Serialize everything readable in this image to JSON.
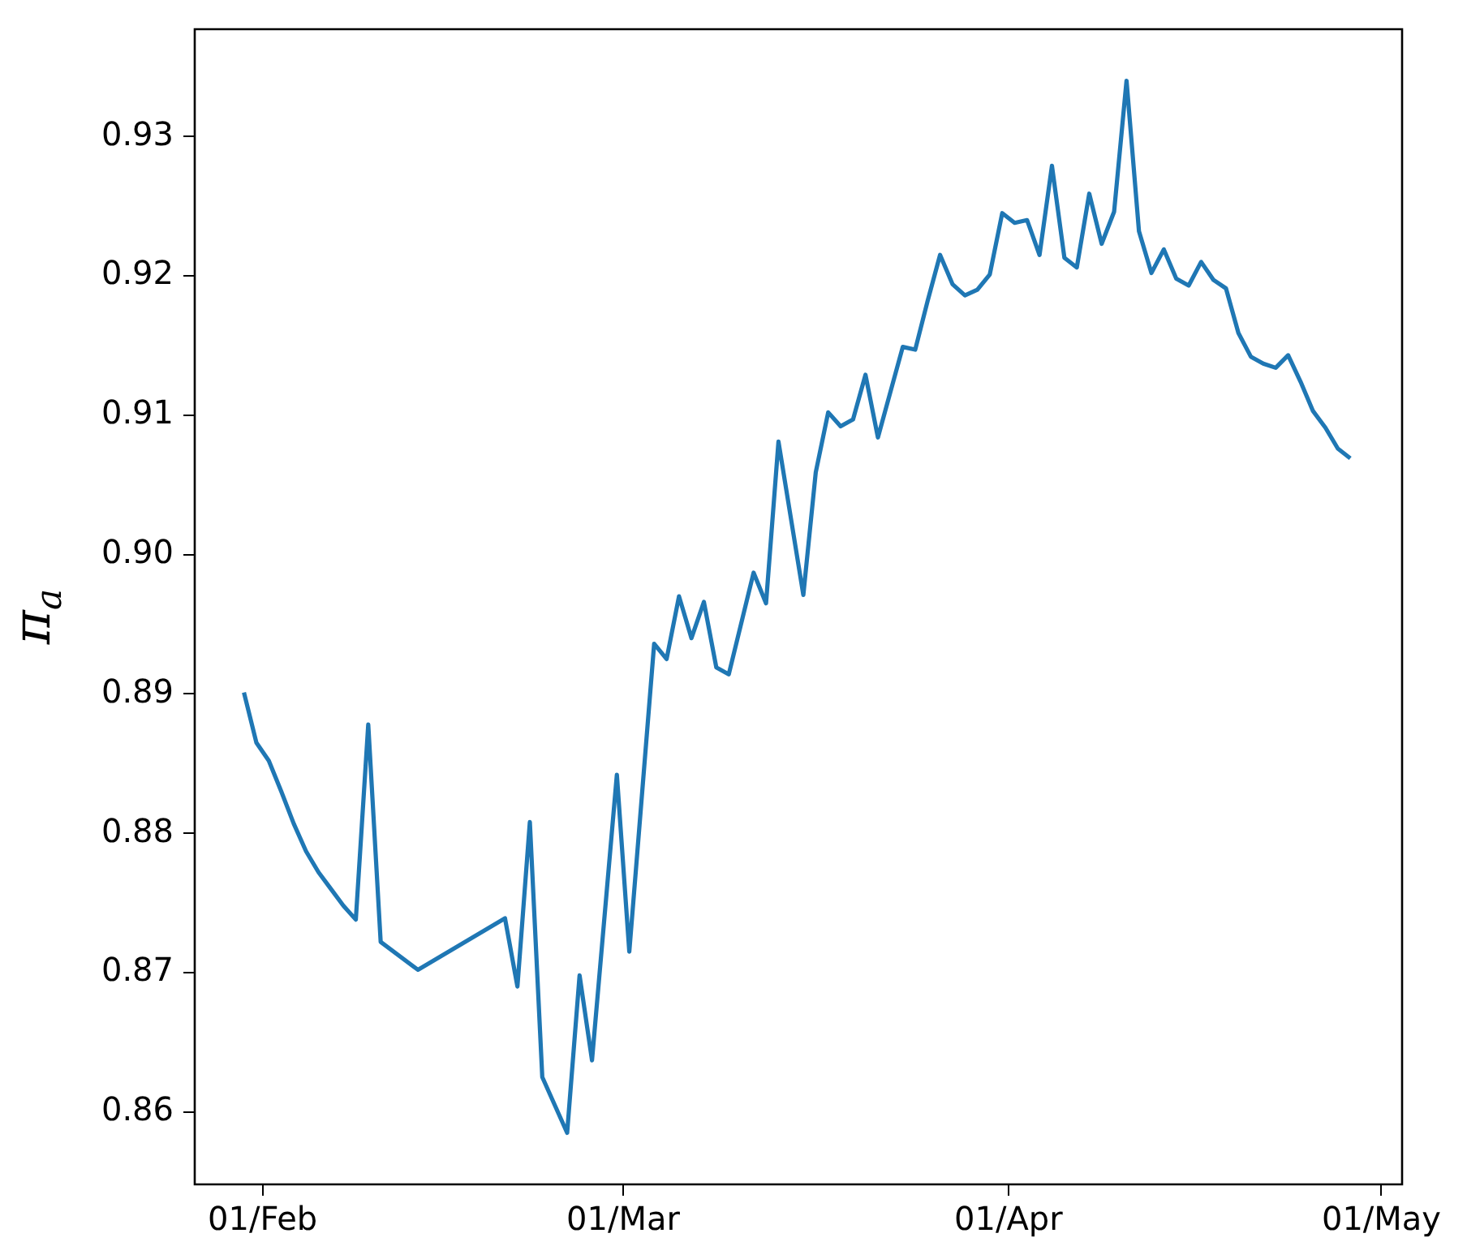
{
  "chart_data": {
    "type": "line",
    "ylabel": "π$_{a}$",
    "color": "#1f77b4",
    "x": [
      "--01-30T12:00",
      "--01-31T12:00",
      "--02-01T12:00",
      "--02-02T12:00",
      "--02-03T12:00",
      "--02-04T12:00",
      "--02-05T12:00",
      "--02-06T12:00",
      "--02-07T12:00",
      "--02-08T12:00",
      "--02-09T12:00",
      "--02-10T12:00",
      "--02-13T12:00",
      "--02-20T12:00",
      "--02-21T12:00",
      "--02-22T12:00",
      "--02-23T12:00",
      "--02-25T12:00",
      "--02-26T12:00",
      "--02-27T12:00",
      "--02-29T12:00",
      "--03-01T12:00",
      "--03-03T12:00",
      "--03-04T12:00",
      "--03-05T12:00",
      "--03-06T12:00",
      "--03-07T12:00",
      "--03-08T12:00",
      "--03-09T12:00",
      "--03-11T12:00",
      "--03-12T12:00",
      "--03-13T12:00",
      "--03-15T12:00",
      "--03-16T12:00",
      "--03-17T12:00",
      "--03-18T12:00",
      "--03-19T12:00",
      "--03-20T12:00",
      "--03-21T12:00",
      "--03-23T12:00",
      "--03-24T12:00",
      "--03-25T12:00",
      "--03-26T12:00",
      "--03-27T12:00",
      "--03-28T12:00",
      "--03-29T12:00",
      "--03-30T12:00",
      "--03-31T12:00",
      "--04-01T12:00",
      "--04-02T12:00",
      "--04-03T12:00",
      "--04-04T12:00",
      "--04-05T12:00",
      "--04-06T12:00",
      "--04-07T12:00",
      "--04-08T12:00",
      "--04-09T12:00",
      "--04-10T12:00",
      "--04-11T12:00",
      "--04-12T12:00",
      "--04-13T12:00",
      "--04-14T12:00",
      "--04-15T12:00",
      "--04-16T12:00",
      "--04-17T12:00",
      "--04-18T12:00",
      "--04-19T12:00",
      "--04-20T12:00",
      "--04-21T12:00",
      "--04-22T12:00",
      "--04-23T12:00",
      "--04-24T12:00",
      "--04-25T12:00",
      "--04-26T12:00",
      "--04-27T12:00",
      "--04-28T12:00"
    ],
    "values": [
      0.8901,
      0.8865,
      0.8852,
      0.883,
      0.8807,
      0.8787,
      0.8772,
      0.876,
      0.8748,
      0.8738,
      0.8878,
      0.8722,
      0.8702,
      0.8739,
      0.869,
      0.8808,
      0.8625,
      0.8585,
      0.8698,
      0.8637,
      0.8842,
      0.8715,
      0.8936,
      0.8925,
      0.897,
      0.894,
      0.8966,
      0.8919,
      0.8914,
      0.8987,
      0.8965,
      0.9081,
      0.8971,
      0.9059,
      0.9102,
      0.9092,
      0.9097,
      0.9129,
      0.9084,
      0.9149,
      0.9147,
      0.9182,
      0.9215,
      0.9194,
      0.9186,
      0.919,
      0.9201,
      0.9245,
      0.9238,
      0.924,
      0.9215,
      0.9279,
      0.9213,
      0.9206,
      0.9259,
      0.9223,
      0.9246,
      0.934,
      0.9232,
      0.9202,
      0.9219,
      0.9198,
      0.9193,
      0.921,
      0.9197,
      0.9191,
      0.9159,
      0.9142,
      0.9137,
      0.9134,
      0.9143,
      0.9124,
      0.9103,
      0.9091,
      0.9076,
      0.9069
    ],
    "xlim": [
      "--01-26T13:00",
      "--05-02T16:00"
    ],
    "xticks": [
      {
        "value": "--02-01",
        "label": "01/Feb"
      },
      {
        "value": "--03-01",
        "label": "01/Mar"
      },
      {
        "value": "--04-01",
        "label": "01/Apr"
      },
      {
        "value": "--05-01",
        "label": "01/May"
      }
    ],
    "ylim": [
      0.8548,
      0.9377
    ],
    "yticks": [
      0.86,
      0.87,
      0.88,
      0.89,
      {
        "value": 0.9,
        "label": "0.90"
      },
      0.91,
      0.92,
      0.93
    ]
  }
}
